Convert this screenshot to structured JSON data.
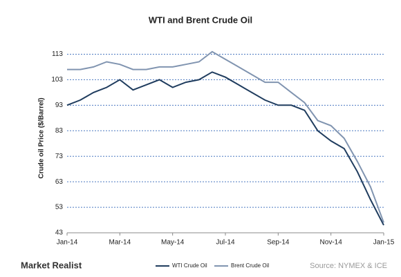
{
  "chart_data": {
    "type": "line",
    "title": "WTI and Brent Crude Oil",
    "y_label": "Crude oil Price ($/Barrel)",
    "categories": [
      "Jan-14",
      null,
      null,
      null,
      "Mar-14",
      null,
      null,
      null,
      "May-14",
      null,
      null,
      null,
      "Jul-14",
      null,
      null,
      null,
      "Sep-14",
      null,
      null,
      null,
      "Nov-14",
      null,
      null,
      null,
      "Jan-15"
    ],
    "series": [
      {
        "name": "WTI Crude Oil",
        "color": "#1f3c5e",
        "values": [
          93,
          95,
          98,
          100,
          103,
          99,
          101,
          103,
          100,
          102,
          103,
          106,
          104,
          101,
          98,
          95,
          93,
          93,
          91,
          83,
          79,
          76,
          67,
          56,
          46
        ]
      },
      {
        "name": "Brent Crude Oil",
        "color": "#8094b0",
        "values": [
          107,
          107,
          108,
          110,
          109,
          107,
          107,
          108,
          108,
          109,
          110,
          114,
          111,
          108,
          105,
          102,
          102,
          98,
          94,
          87,
          85,
          80,
          71,
          61,
          47
        ]
      }
    ],
    "ylim": [
      43,
      118
    ],
    "yticks": [
      43,
      53,
      63,
      73,
      83,
      93,
      103,
      113
    ],
    "grid": true,
    "brand": "Market Realist",
    "source": "Source: NYMEX & ICE"
  }
}
